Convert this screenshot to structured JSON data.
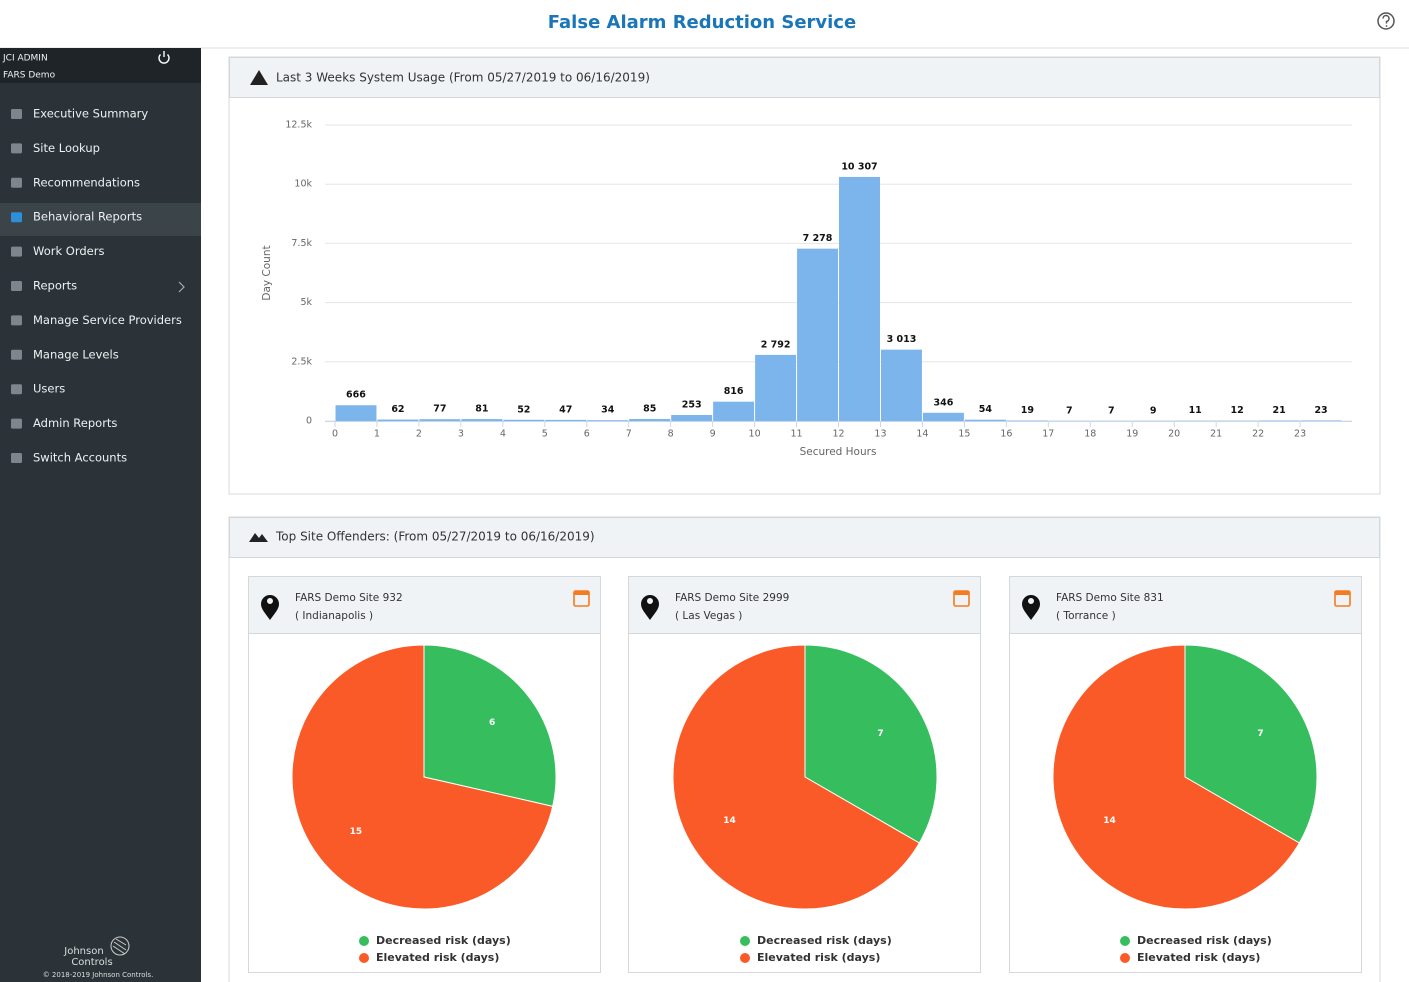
{
  "header": {
    "title": "False Alarm Reduction Service"
  },
  "sidebar": {
    "user": "JCI ADMIN",
    "account": "FARS Demo",
    "menu": [
      "Executive Summary",
      "Site Lookup",
      "Recommendations",
      "Behavioral Reports",
      "Work Orders",
      "Reports",
      "Manage Service Providers",
      "Manage Levels",
      "Users",
      "Admin Reports",
      "Switch Accounts"
    ]
  },
  "footer": {
    "brand_line1": "Johnson",
    "brand_line2": "Controls",
    "copyright": "© 2018-2019 Johnson Controls."
  },
  "panels": [
    {
      "title": "Last 3 Weeks System Usage (From 05/27/2019 to 06/16/2019)"
    },
    {
      "title": "Top Site Offenders: (From 05/27/2019 to 06/16/2019)"
    }
  ],
  "sites": [
    {
      "name": "FARS Demo Site 932",
      "city": "( Indianapolis )"
    },
    {
      "name": "FARS Demo Site 2999",
      "city": "( Las Vegas )"
    },
    {
      "name": "FARS Demo Site 831",
      "city": "( Torrance )"
    }
  ],
  "chart_data": [
    {
      "type": "histogram",
      "xlabel": "Secured Hours",
      "ylabel": "Day Count",
      "bins": [
        0,
        1,
        2,
        3,
        4,
        5,
        6,
        7,
        8,
        9,
        10,
        11,
        12,
        13,
        14,
        15,
        16,
        17,
        18,
        19,
        20,
        21,
        22,
        23,
        24
      ],
      "values": [
        666,
        62,
        77,
        81,
        52,
        47,
        34,
        85,
        253,
        816,
        2792,
        7278,
        10307,
        3013,
        346,
        54,
        19,
        7,
        7,
        9,
        11,
        12,
        21,
        23
      ],
      "value_labels": [
        "666",
        "62",
        "77",
        "81",
        "52",
        "47",
        "34",
        "85",
        "253",
        "816",
        "2 792",
        "7 278",
        "10 307",
        "3 013",
        "346",
        "54",
        "19",
        "7",
        "7",
        "9",
        "11",
        "12",
        "21",
        "23"
      ],
      "color": "#7cb5ec",
      "xlim": [
        0,
        24
      ],
      "xticks": [
        0,
        1,
        2,
        3,
        4,
        5,
        6,
        7,
        8,
        9,
        10,
        11,
        12,
        13,
        14,
        15,
        16,
        17,
        18,
        19,
        20,
        21,
        22,
        23
      ],
      "ylim": [
        0,
        12500
      ],
      "yticks": [
        0,
        {
          "value": 2500,
          "label": "2.5k"
        },
        {
          "value": 5000,
          "label": "5k"
        },
        {
          "value": 7500,
          "label": "7.5k"
        },
        {
          "value": 10000,
          "label": "10k"
        },
        {
          "value": 12500,
          "label": "12.5k"
        }
      ],
      "grid": true
    },
    {
      "type": "pie",
      "categories": [
        "Decreased risk (days)",
        "Elevated risk (days)"
      ],
      "values": [
        6,
        15
      ],
      "colors": [
        "#36be5e",
        "#fa5a28"
      ]
    },
    {
      "type": "pie",
      "categories": [
        "Decreased risk (days)",
        "Elevated risk (days)"
      ],
      "values": [
        7,
        14
      ],
      "colors": [
        "#36be5e",
        "#fa5a28"
      ]
    },
    {
      "type": "pie",
      "categories": [
        "Decreased risk (days)",
        "Elevated risk (days)"
      ],
      "values": [
        7,
        14
      ],
      "colors": [
        "#36be5e",
        "#fa5a28"
      ]
    }
  ]
}
